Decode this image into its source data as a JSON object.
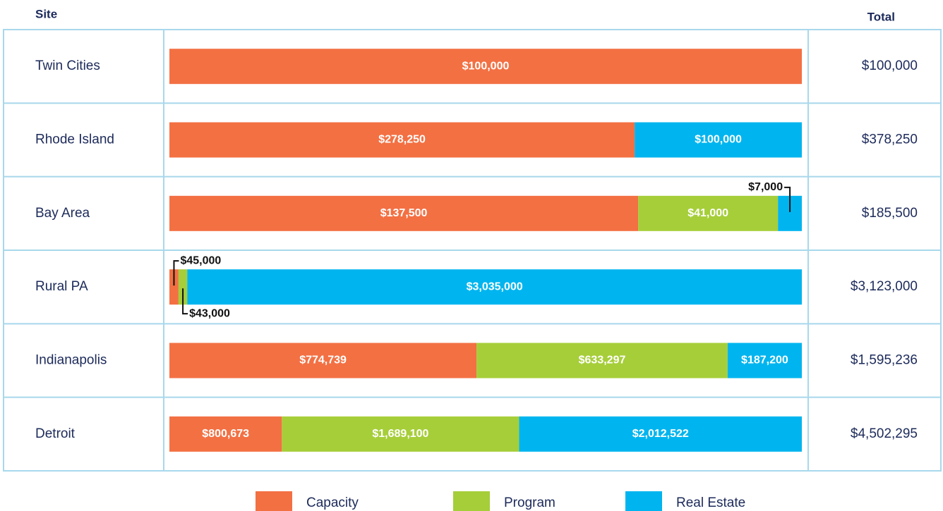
{
  "chart_data": {
    "type": "bar",
    "stacked": "percent",
    "column_headers": [
      "Site",
      "Total"
    ],
    "categories": [
      "Twin Cities",
      "Rhode Island",
      "Bay Area",
      "Rural PA",
      "Indianapolis",
      "Detroit"
    ],
    "series": [
      {
        "name": "Capacity",
        "color": "#f37043",
        "values": [
          100000,
          278250,
          137500,
          45000,
          774739,
          800673
        ],
        "value_labels": [
          "$100,000",
          "$278,250",
          "$137,500",
          "$45,000",
          "$774,739",
          "$800,673"
        ]
      },
      {
        "name": "Program",
        "color": "#a6ce39",
        "values": [
          null,
          null,
          41000,
          43000,
          633297,
          1689100
        ],
        "value_labels": [
          null,
          null,
          "$41,000",
          "$43,000",
          "$633,297",
          "$1,689,100"
        ]
      },
      {
        "name": "Real Estate",
        "color": "#00b5ef",
        "values": [
          null,
          100000,
          7000,
          3035000,
          187200,
          2012522
        ],
        "value_labels": [
          null,
          "$100,000",
          "$7,000",
          "$3,035,000",
          "$187,200",
          "$2,012,522"
        ]
      }
    ],
    "totals": [
      100000,
      378250,
      185500,
      3123000,
      1595236,
      4502295
    ],
    "total_labels": [
      "$100,000",
      "$378,250",
      "$185,500",
      "$3,123,000",
      "$1,595,236",
      "$4,502,295"
    ]
  }
}
